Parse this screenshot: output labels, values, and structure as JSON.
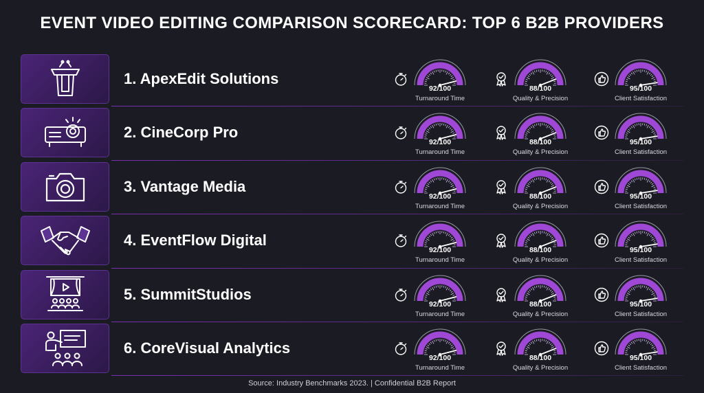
{
  "title": "EVENT VIDEO EDITING COMPARISON SCORECARD: TOP 6 B2B PROVIDERS",
  "source": "Source: Industry Benchmarks 2023. | Confidential B2B Report",
  "colors": {
    "background": "#1b1b24",
    "accent": "#a64be0",
    "panel": "#3a1f5e"
  },
  "metric_labels": [
    "Turnaround Time",
    "Quality & Precision",
    "Client Satisfaction"
  ],
  "metric_icons": [
    "stopwatch-icon",
    "award-ribbon-icon",
    "thumbs-up-icon"
  ],
  "providers": [
    {
      "rank_name": "1.  ApexEdit Solutions",
      "icon": "podium-icon",
      "metrics": [
        {
          "score": "92/100",
          "value": 92
        },
        {
          "score": "88/100",
          "value": 88
        },
        {
          "score": "95/100",
          "value": 95
        }
      ]
    },
    {
      "rank_name": "2. CineCorp Pro",
      "icon": "projector-icon",
      "metrics": [
        {
          "score": "92/100",
          "value": 92
        },
        {
          "score": "88/100",
          "value": 88
        },
        {
          "score": "95/100",
          "value": 95
        }
      ]
    },
    {
      "rank_name": "3. Vantage Media",
      "icon": "camera-icon",
      "metrics": [
        {
          "score": "92/100",
          "value": 92
        },
        {
          "score": "88/100",
          "value": 88
        },
        {
          "score": "95/100",
          "value": 95
        }
      ]
    },
    {
      "rank_name": "4. EventFlow Digital",
      "icon": "handshake-icon",
      "metrics": [
        {
          "score": "92/100",
          "value": 92
        },
        {
          "score": "88/100",
          "value": 88
        },
        {
          "score": "95/100",
          "value": 95
        }
      ]
    },
    {
      "rank_name": "5. SummitStudios",
      "icon": "theater-screen-icon",
      "metrics": [
        {
          "score": "92/100",
          "value": 92
        },
        {
          "score": "88/100",
          "value": 88
        },
        {
          "score": "95/100",
          "value": 95
        }
      ]
    },
    {
      "rank_name": "6. CoreVisual Analytics",
      "icon": "presentation-icon",
      "metrics": [
        {
          "score": "92/100",
          "value": 92
        },
        {
          "score": "88/100",
          "value": 88
        },
        {
          "score": "95/100",
          "value": 95
        }
      ]
    }
  ]
}
